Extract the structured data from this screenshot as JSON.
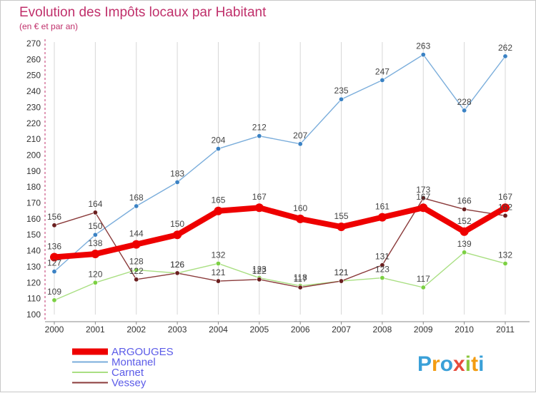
{
  "chart_data": {
    "type": "line",
    "title": "Evolution des Impôts locaux par Habitant",
    "subtitle": "(en € et par an)",
    "categories": [
      "2000",
      "2001",
      "2002",
      "2003",
      "2004",
      "2005",
      "2006",
      "2007",
      "2008",
      "2009",
      "2010",
      "2011"
    ],
    "y_ticks": [
      100,
      110,
      120,
      130,
      140,
      150,
      160,
      170,
      180,
      190,
      200,
      210,
      220,
      230,
      240,
      250,
      260,
      270
    ],
    "ylim": [
      100,
      270
    ],
    "grid": "vertical",
    "legend_position": "bottom-left",
    "series": [
      {
        "name": "Montanel",
        "color": "#7aaddb",
        "marker": "#3b82c4",
        "values": [
          127,
          150,
          168,
          183,
          204,
          212,
          207,
          235,
          247,
          263,
          228,
          262
        ]
      },
      {
        "name": "Carnet",
        "color": "#a9df82",
        "marker": "#7cd043",
        "values": [
          109,
          120,
          128,
          126,
          132,
          123,
          118,
          121,
          123,
          117,
          139,
          132
        ]
      },
      {
        "name": "Vessey",
        "color": "#8a3a3a",
        "marker": "#6b1f1f",
        "values": [
          156,
          164,
          122,
          126,
          121,
          122,
          117,
          121,
          131,
          173,
          166,
          162
        ]
      },
      {
        "name": "ARGOUGES",
        "color": "#ee0000",
        "marker": "#ee0000",
        "values": [
          136,
          138,
          144,
          150,
          165,
          167,
          160,
          155,
          161,
          167,
          152,
          167
        ]
      }
    ]
  },
  "legend_items": [
    "ARGOUGES",
    "Montanel",
    "Carnet",
    "Vessey"
  ],
  "logo": {
    "text": "Proxiti"
  }
}
